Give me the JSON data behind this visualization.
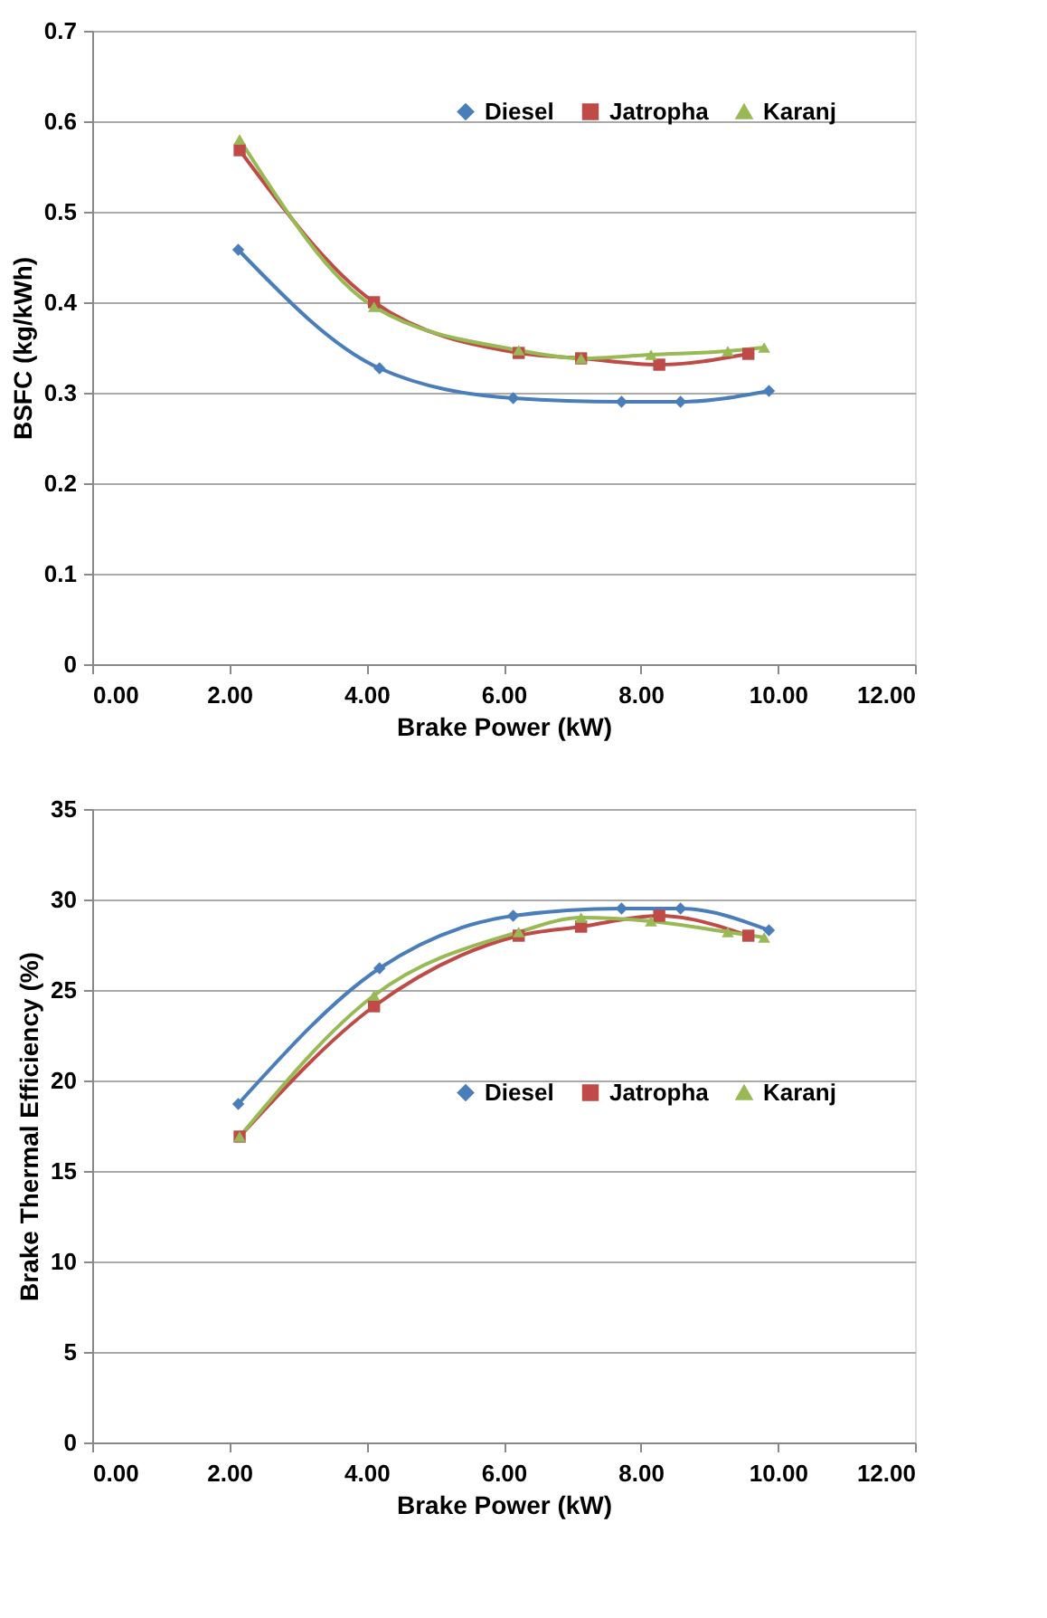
{
  "chart_data": [
    {
      "type": "line",
      "xlabel": "Brake Power (kW)",
      "ylabel": "BSFC (kg/kWh)",
      "xlim": [
        0,
        12
      ],
      "ylim": [
        0,
        0.7
      ],
      "xticks": [
        {
          "value": 0,
          "label": "0.00"
        },
        {
          "value": 2,
          "label": "2.00"
        },
        {
          "value": 4,
          "label": "4.00"
        },
        {
          "value": 6,
          "label": "6.00"
        },
        {
          "value": 8,
          "label": "8.00"
        },
        {
          "value": 10,
          "label": "10.00"
        },
        {
          "value": 12,
          "label": "12.00"
        }
      ],
      "yticks": [
        0,
        0.1,
        0.2,
        0.3,
        0.4,
        0.5,
        0.6,
        0.7
      ],
      "grid": "y",
      "legend": "top right",
      "series": [
        {
          "name": "Diesel",
          "color": "#4a7ebb",
          "marker": "diamond",
          "x": [
            2.13,
            4.19,
            6.14,
            7.72,
            8.58,
            9.87
          ],
          "values": [
            0.458,
            0.327,
            0.294,
            0.29,
            0.29,
            0.302
          ]
        },
        {
          "name": "Jatropha",
          "color": "#be4b48",
          "marker": "square",
          "x": [
            2.15,
            4.11,
            6.22,
            7.13,
            8.27,
            9.57
          ],
          "values": [
            0.568,
            0.4,
            0.344,
            0.338,
            0.331,
            0.343
          ]
        },
        {
          "name": "Karanj",
          "color": "#98b954",
          "marker": "triangle",
          "x": [
            2.15,
            4.11,
            6.22,
            7.13,
            8.15,
            9.27,
            9.8
          ],
          "values": [
            0.58,
            0.395,
            0.347,
            0.338,
            0.342,
            0.346,
            0.35
          ]
        }
      ]
    },
    {
      "type": "line",
      "xlabel": "Brake Power (kW)",
      "ylabel": "Brake Thermal Efficiency (%)",
      "xlim": [
        0,
        12
      ],
      "ylim": [
        0,
        35
      ],
      "xticks": [
        {
          "value": 0,
          "label": "0.00"
        },
        {
          "value": 2,
          "label": "2.00"
        },
        {
          "value": 4,
          "label": "4.00"
        },
        {
          "value": 6,
          "label": "6.00"
        },
        {
          "value": 8,
          "label": "8.00"
        },
        {
          "value": 10,
          "label": "10.00"
        },
        {
          "value": 12,
          "label": "12.00"
        }
      ],
      "yticks": [
        0,
        5,
        10,
        15,
        20,
        25,
        30,
        35
      ],
      "grid": "y",
      "legend": "right",
      "series": [
        {
          "name": "Diesel",
          "color": "#4a7ebb",
          "marker": "diamond",
          "x": [
            2.13,
            4.19,
            6.14,
            7.72,
            8.58,
            9.87
          ],
          "values": [
            18.7,
            26.2,
            29.1,
            29.5,
            29.5,
            28.3
          ]
        },
        {
          "name": "Jatropha",
          "color": "#be4b48",
          "marker": "square",
          "x": [
            2.15,
            4.11,
            6.22,
            7.13,
            8.27,
            9.57
          ],
          "values": [
            16.9,
            24.1,
            28.0,
            28.5,
            29.1,
            28.0
          ]
        },
        {
          "name": "Karanj",
          "color": "#98b954",
          "marker": "triangle",
          "x": [
            2.15,
            4.11,
            6.22,
            7.13,
            8.15,
            9.27,
            9.8
          ],
          "values": [
            16.9,
            24.7,
            28.2,
            29.0,
            28.8,
            28.2,
            27.9
          ]
        }
      ]
    }
  ]
}
